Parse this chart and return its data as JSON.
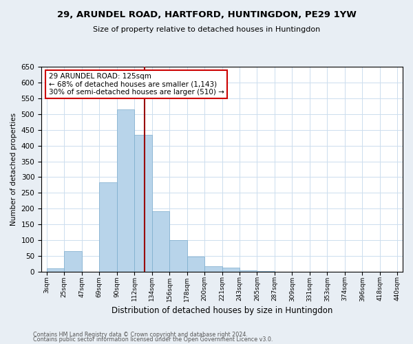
{
  "title1": "29, ARUNDEL ROAD, HARTFORD, HUNTINGDON, PE29 1YW",
  "title2": "Size of property relative to detached houses in Huntingdon",
  "xlabel": "Distribution of detached houses by size in Huntingdon",
  "ylabel": "Number of detached properties",
  "bar_color": "#b8d4ea",
  "bar_edge_color": "#7aabcc",
  "bin_labels": [
    "3sqm",
    "25sqm",
    "47sqm",
    "69sqm",
    "90sqm",
    "112sqm",
    "134sqm",
    "156sqm",
    "178sqm",
    "200sqm",
    "221sqm",
    "243sqm",
    "265sqm",
    "287sqm",
    "309sqm",
    "331sqm",
    "353sqm",
    "374sqm",
    "396sqm",
    "418sqm",
    "440sqm"
  ],
  "bar_heights": [
    10,
    65,
    0,
    283,
    515,
    435,
    192,
    101,
    47,
    18,
    12,
    5,
    2,
    0,
    0,
    0,
    0,
    0,
    0,
    0
  ],
  "ylim": [
    0,
    650
  ],
  "yticks": [
    0,
    50,
    100,
    150,
    200,
    250,
    300,
    350,
    400,
    450,
    500,
    550,
    600,
    650
  ],
  "bin_edges_sqm": [
    3,
    25,
    47,
    69,
    90,
    112,
    134,
    156,
    178,
    200,
    221,
    243,
    265,
    287,
    309,
    331,
    353,
    374,
    396,
    418,
    440
  ],
  "property_sqm": 125,
  "annotation_title": "29 ARUNDEL ROAD: 125sqm",
  "annotation_line1": "← 68% of detached houses are smaller (1,143)",
  "annotation_line2": "30% of semi-detached houses are larger (510) →",
  "footer1": "Contains HM Land Registry data © Crown copyright and database right 2024.",
  "footer2": "Contains public sector information licensed under the Open Government Licence v3.0.",
  "background_color": "#e8eef4",
  "plot_bg_color": "#ffffff",
  "annotation_box_color": "#ffffff",
  "annotation_box_edge": "#cc0000",
  "property_line_color": "#990000",
  "grid_color": "#ccddee",
  "title1_fontsize": 9.5,
  "title2_fontsize": 8.5
}
